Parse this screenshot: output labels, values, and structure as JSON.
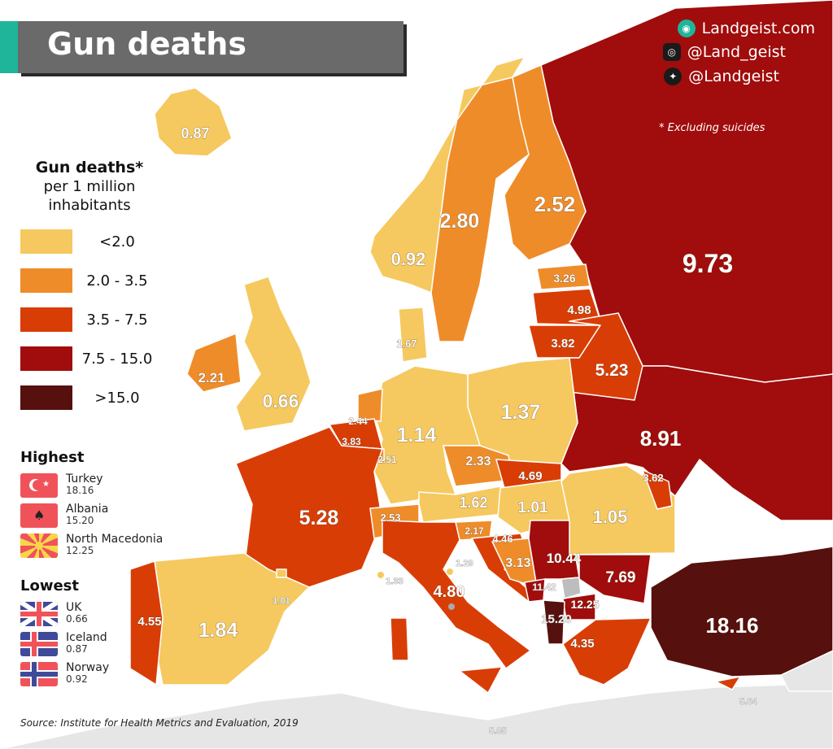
{
  "title": "Gun deaths",
  "brand": {
    "site": "Landgeist.com",
    "instagram": "@Land_geist",
    "twitter": "@Landgeist"
  },
  "note": "* Excluding suicides",
  "legend": {
    "title": "Gun deaths*",
    "subtitle1": "per 1 million",
    "subtitle2": "inhabitants",
    "bins": [
      {
        "label": "<2.0",
        "color": "#f5c95f"
      },
      {
        "label": "2.0 - 3.5",
        "color": "#ef8c2a"
      },
      {
        "label": "3.5 - 7.5",
        "color": "#d93d06"
      },
      {
        "label": "7.5 - 15.0",
        "color": "#a00d0c"
      },
      {
        "label": ">15.0",
        "color": "#56100d"
      }
    ]
  },
  "highest": {
    "title": "Highest",
    "items": [
      {
        "country": "Turkey",
        "value": "18.16",
        "flag": "turkey-flag"
      },
      {
        "country": "Albania",
        "value": "15.20",
        "flag": "albania-flag"
      },
      {
        "country": "North Macedonia",
        "value": "12.25",
        "flag": "north-macedonia-flag"
      }
    ]
  },
  "lowest": {
    "title": "Lowest",
    "items": [
      {
        "country": "UK",
        "value": "0.66",
        "flag": "uk-flag"
      },
      {
        "country": "Iceland",
        "value": "0.87",
        "flag": "iceland-flag"
      },
      {
        "country": "Norway",
        "value": "0.92",
        "flag": "norway-flag"
      }
    ]
  },
  "source": "Source: Institute for Health Metrics and Evaluation, 2019",
  "regions": {
    "russia": {
      "value": "9.73",
      "bin": 3
    },
    "ukraine": {
      "value": "8.91",
      "bin": 3
    },
    "finland": {
      "value": "2.52",
      "bin": 1
    },
    "sweden": {
      "value": "2.80",
      "bin": 1
    },
    "norway": {
      "value": "0.92",
      "bin": 0
    },
    "iceland": {
      "value": "0.87",
      "bin": 0
    },
    "uk": {
      "value": "0.66",
      "bin": 0
    },
    "ireland": {
      "value": "2.21",
      "bin": 1
    },
    "denmark": {
      "value": "1.67",
      "bin": 0
    },
    "estonia": {
      "value": "3.26",
      "bin": 1
    },
    "latvia": {
      "value": "4.98",
      "bin": 2
    },
    "lithuania": {
      "value": "3.82",
      "bin": 2
    },
    "belarus": {
      "value": "5.23",
      "bin": 2
    },
    "poland": {
      "value": "1.37",
      "bin": 0
    },
    "germany": {
      "value": "1.14",
      "bin": 0
    },
    "netherlands": {
      "value": "2.44",
      "bin": 1
    },
    "belgium": {
      "value": "3.83",
      "bin": 2
    },
    "luxembourg": {
      "value": "2.51",
      "bin": 1
    },
    "france": {
      "value": "5.28",
      "bin": 2
    },
    "spain": {
      "value": "1.84",
      "bin": 0
    },
    "portugal": {
      "value": "4.55",
      "bin": 2
    },
    "andorra": {
      "value": "1.01",
      "bin": 0
    },
    "switzerland": {
      "value": "2.53",
      "bin": 1
    },
    "czechia": {
      "value": "2.33",
      "bin": 1
    },
    "slovakia": {
      "value": "4.69",
      "bin": 2
    },
    "austria": {
      "value": "1.62",
      "bin": 0
    },
    "hungary": {
      "value": "1.01",
      "bin": 0
    },
    "slovenia": {
      "value": "2.17",
      "bin": 1
    },
    "croatia": {
      "value": "4.46",
      "bin": 2
    },
    "bosnia": {
      "value": "3.13",
      "bin": 1
    },
    "serbia": {
      "value": "10.44",
      "bin": 3
    },
    "montenegro": {
      "value": "11.42",
      "bin": 3
    },
    "north_macedonia": {
      "value": "12.25",
      "bin": 3
    },
    "albania": {
      "value": "15.20",
      "bin": 4
    },
    "romania": {
      "value": "1.05",
      "bin": 0
    },
    "moldova": {
      "value": "3.62",
      "bin": 2
    },
    "bulgaria": {
      "value": "7.69",
      "bin": 3
    },
    "greece": {
      "value": "4.35",
      "bin": 2
    },
    "italy": {
      "value": "4.80",
      "bin": 2
    },
    "san_marino": {
      "value": "1.29",
      "bin": 0
    },
    "monaco": {
      "value": "1.33",
      "bin": 0
    },
    "turkey": {
      "value": "18.16",
      "bin": 4
    },
    "cyprus": {
      "value": "5.64",
      "bin": 2
    },
    "malta": {
      "value": "5.85",
      "bin": 2
    }
  }
}
